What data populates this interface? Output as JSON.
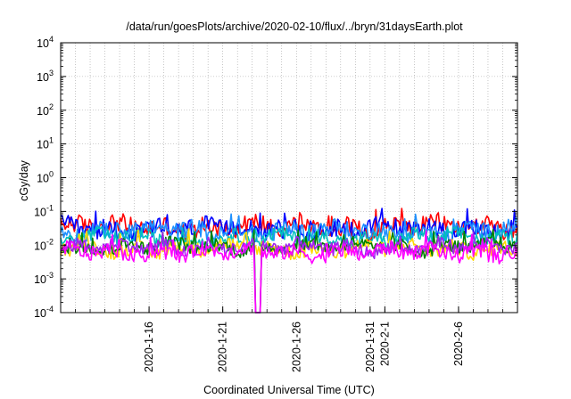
{
  "chart_data": {
    "type": "line",
    "title": "/data/run/goesPlots/archive/2020-02-10/flux/../bryn/31daysEarth.plot",
    "xlabel": "Coordinated Universal Time (UTC)",
    "ylabel": "cGy/day",
    "yscale": "log",
    "ylim": [
      0.0001,
      10000
    ],
    "xlim": [
      "2020-01-10",
      "2020-02-10"
    ],
    "grid": true,
    "yticks": [
      {
        "base": "10",
        "exp": "-4"
      },
      {
        "base": "10",
        "exp": "-3"
      },
      {
        "base": "10",
        "exp": "-2"
      },
      {
        "base": "10",
        "exp": "-1"
      },
      {
        "base": "10",
        "exp": "0"
      },
      {
        "base": "10",
        "exp": "1"
      },
      {
        "base": "10",
        "exp": "2"
      },
      {
        "base": "10",
        "exp": "3"
      },
      {
        "base": "10",
        "exp": "4"
      }
    ],
    "xticks": [
      "2020-1-16",
      "2020-1-21",
      "2020-1-26",
      "2020-1-31",
      "2020-2-1",
      "2020-2-6"
    ],
    "series": [
      {
        "color": "#ff0000",
        "base": 0.035,
        "spread": 0.28
      },
      {
        "color": "#0000ff",
        "base": 0.03,
        "spread": 0.28
      },
      {
        "color": "#1e90ff",
        "base": 0.026,
        "spread": 0.26
      },
      {
        "color": "#00bfbf",
        "base": 0.016,
        "spread": 0.22
      },
      {
        "color": "#ffd700",
        "base": 0.008,
        "spread": 0.22
      },
      {
        "color": "#008000",
        "base": 0.009,
        "spread": 0.2
      },
      {
        "color": "#a020f0",
        "base": 0.0085,
        "spread": 0.2
      },
      {
        "color": "#ff00ff",
        "base": 0.0062,
        "spread": 0.22
      }
    ],
    "dropout": {
      "date": "2020-01-23",
      "min": 0.0001
    }
  }
}
